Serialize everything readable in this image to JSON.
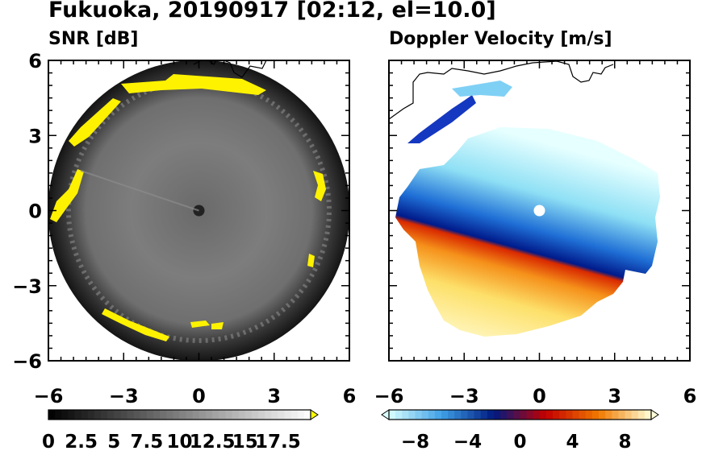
{
  "title": "Fukuoka, 20190917 [02:12, el=10.0]",
  "chart_data": [
    {
      "type": "heatmap",
      "title": "SNR [dB]",
      "description_kind": "polar radar PPI",
      "xlim": [
        -6,
        6
      ],
      "ylim": [
        -6,
        6
      ],
      "xticks": [
        "−6",
        "−3",
        "0",
        "3",
        "6"
      ],
      "yticks": [
        "6",
        "3",
        "0",
        "−3",
        "−6"
      ],
      "colorbar": {
        "range": [
          0,
          20
        ],
        "ticks": [
          "0",
          "2.5",
          "5",
          "7.5",
          "10",
          "12.5",
          "15",
          "17.5"
        ],
        "extend": "max",
        "colors": [
          "#000000",
          "#ffffff"
        ]
      }
    },
    {
      "type": "heatmap",
      "title": "Doppler Velocity [m/s]",
      "description_kind": "polar radar PPI",
      "xlim": [
        -6,
        6
      ],
      "ylim": [
        -6,
        6
      ],
      "xticks": [
        "−6",
        "−3",
        "0",
        "3",
        "6"
      ],
      "colorbar": {
        "range": [
          -10,
          10
        ],
        "ticks": [
          "−8",
          "−4",
          "0",
          "4",
          "8"
        ],
        "extend": "both",
        "colors": [
          "#d9ffff",
          "#3fa0e6",
          "#001a80",
          "#c40000",
          "#f07a00",
          "#ffffd9"
        ]
      }
    }
  ]
}
